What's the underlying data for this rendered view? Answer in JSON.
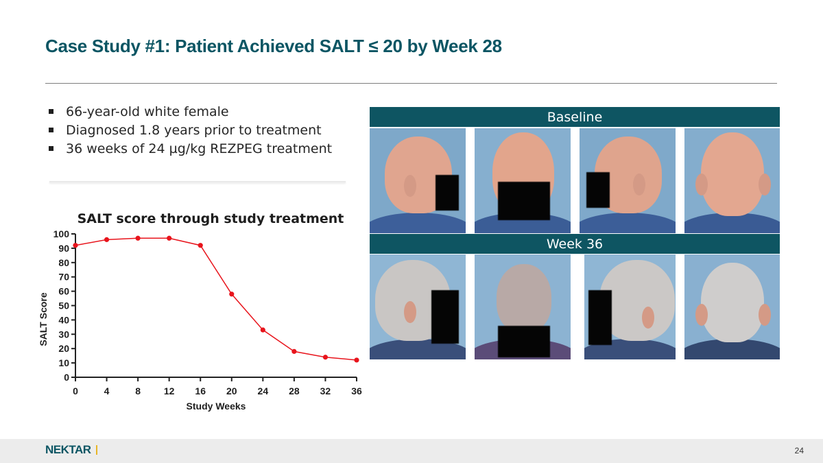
{
  "slide": {
    "title": "Case Study #1: Patient Achieved SALT ≤ 20 by Week 28",
    "page_number": "24",
    "logo_text": "NEKTAR"
  },
  "bullets": [
    "66-year-old white female",
    "Diagnosed 1.8 years prior to treatment",
    "36 weeks of 24 µg/kg REZPEG treatment"
  ],
  "photos": {
    "baseline_label": "Baseline",
    "week36_label": "Week 36"
  },
  "colors": {
    "brand_teal": "#0b5563",
    "banner_teal": "#0e5562",
    "series_red": "#e8141c",
    "logo_accent": "#e8b526"
  },
  "chart_data": {
    "type": "line",
    "title": "SALT score through study treatment",
    "xlabel": "Study Weeks",
    "ylabel": "SALT Score",
    "x": [
      0,
      4,
      8,
      12,
      16,
      20,
      24,
      28,
      32,
      36
    ],
    "x_ticks": [
      "0",
      "4",
      "8",
      "12",
      "16",
      "20",
      "24",
      "28",
      "32",
      "36"
    ],
    "y_ticks": [
      "0",
      "10",
      "20",
      "30",
      "40",
      "50",
      "60",
      "70",
      "80",
      "90",
      "100"
    ],
    "xlim": [
      0,
      36
    ],
    "ylim": [
      0,
      100
    ],
    "grid": false,
    "legend": "none",
    "series": [
      {
        "values": [
          92,
          96,
          97,
          97,
          92,
          58,
          33,
          18,
          14,
          12
        ]
      }
    ]
  }
}
